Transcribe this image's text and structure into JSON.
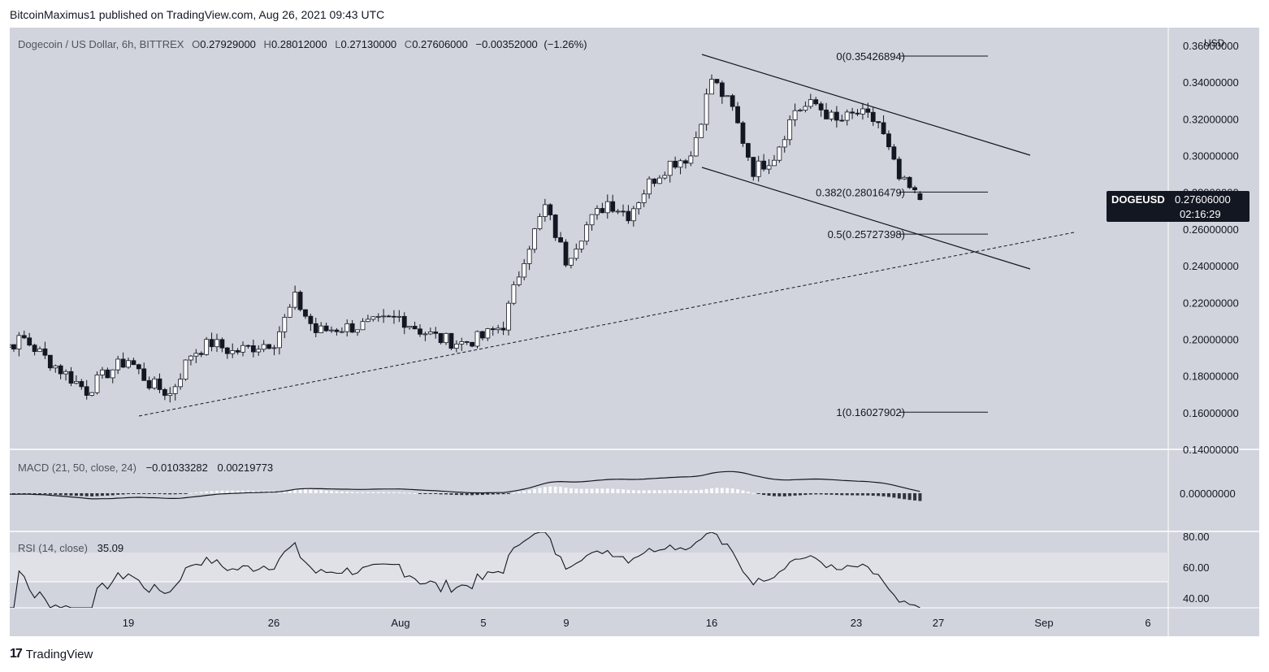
{
  "header": {
    "published_text": "BitcoinMaximus1 published on TradingView.com, Aug 26, 2021 09:43 UTC"
  },
  "footer": {
    "logo_text": "TradingView"
  },
  "colors": {
    "panel_bg": "#d1d4dc",
    "text": "#131722",
    "price_tag_bg": "#131722",
    "price_tag_text": "#ffffff"
  },
  "chart_data": [
    {
      "type": "candlestick",
      "title": "Dogecoin / US Dollar, 6h, BITTREX",
      "ohlc": {
        "open_prefix": "O",
        "open": "0.27929000",
        "high_prefix": "H",
        "high": "0.28012000",
        "low_prefix": "L",
        "low": "0.27130000",
        "close_prefix": "C",
        "close": "0.27606000",
        "change": "−0.00352000",
        "change_pct": "(−1.26%)"
      },
      "currency": "USD",
      "y_ticks": [
        "0.36000000",
        "0.34000000",
        "0.32000000",
        "0.30000000",
        "0.28000000",
        "0.26000000",
        "0.24000000",
        "0.22000000",
        "0.20000000",
        "0.18000000",
        "0.16000000",
        "0.14000000"
      ],
      "ylim": [
        0.14,
        0.36
      ],
      "x_ticks": [
        "19",
        "26",
        "Aug",
        "5",
        "9",
        "16",
        "23",
        "27",
        "Sep",
        "6"
      ],
      "symbol_tag": {
        "symbol": "DOGEUSD",
        "price": "0.27606000",
        "countdown": "02:16:29"
      },
      "fib_levels": [
        {
          "label": "0(0.35426894)",
          "value": 0.35426894
        },
        {
          "label": "0.382(0.28016479)",
          "value": 0.28016479
        },
        {
          "label": "0.5(0.25727398)",
          "value": 0.25727398
        },
        {
          "label": "1(0.16027902)",
          "value": 0.16027902
        }
      ],
      "close_series_sampled": [
        [
          "Jul 12",
          0.203
        ],
        [
          "Jul 13",
          0.196
        ],
        [
          "Jul 14",
          0.2
        ],
        [
          "Jul 15",
          0.19
        ],
        [
          "Jul 16",
          0.181
        ],
        [
          "Jul 17",
          0.172
        ],
        [
          "Jul 18",
          0.182
        ],
        [
          "Jul 19",
          0.189
        ],
        [
          "Jul 20",
          0.176
        ],
        [
          "Jul 21",
          0.17
        ],
        [
          "Jul 22",
          0.192
        ],
        [
          "Jul 23",
          0.198
        ],
        [
          "Jul 24",
          0.193
        ],
        [
          "Jul 25",
          0.196
        ],
        [
          "Jul 26",
          0.199
        ],
        [
          "Jul 27",
          0.222
        ],
        [
          "Jul 28",
          0.204
        ],
        [
          "Jul 29",
          0.206
        ],
        [
          "Jul 30",
          0.207
        ],
        [
          "Jul 31",
          0.209
        ],
        [
          "Aug 1",
          0.212
        ],
        [
          "Aug 2",
          0.205
        ],
        [
          "Aug 3",
          0.2
        ],
        [
          "Aug 4",
          0.198
        ],
        [
          "Aug 5",
          0.201
        ],
        [
          "Aug 6",
          0.208
        ],
        [
          "Aug 7",
          0.245
        ],
        [
          "Aug 8",
          0.272
        ],
        [
          "Aug 9",
          0.243
        ],
        [
          "Aug 10",
          0.262
        ],
        [
          "Aug 11",
          0.275
        ],
        [
          "Aug 12",
          0.268
        ],
        [
          "Aug 13",
          0.285
        ],
        [
          "Aug 14",
          0.296
        ],
        [
          "Aug 15",
          0.3
        ],
        [
          "Aug 16",
          0.342
        ],
        [
          "Aug 17",
          0.325
        ],
        [
          "Aug 18",
          0.292
        ],
        [
          "Aug 19",
          0.3
        ],
        [
          "Aug 20",
          0.325
        ],
        [
          "Aug 21",
          0.328
        ],
        [
          "Aug 22",
          0.318
        ],
        [
          "Aug 23",
          0.323
        ],
        [
          "Aug 24",
          0.318
        ],
        [
          "Aug 25",
          0.287
        ],
        [
          "Aug 26",
          0.276
        ]
      ]
    },
    {
      "type": "line",
      "title": "MACD (21, 50, close, 24)",
      "values_text": [
        "−0.01033282",
        "0.00219773"
      ],
      "y_ticks": [
        "0.00000000"
      ]
    },
    {
      "type": "line",
      "title": "RSI (14, close)",
      "value_text": "35.09",
      "y_ticks": [
        "80.00",
        "60.00",
        "40.00"
      ],
      "ylim": [
        25,
        85
      ],
      "band": [
        50,
        70
      ]
    }
  ]
}
